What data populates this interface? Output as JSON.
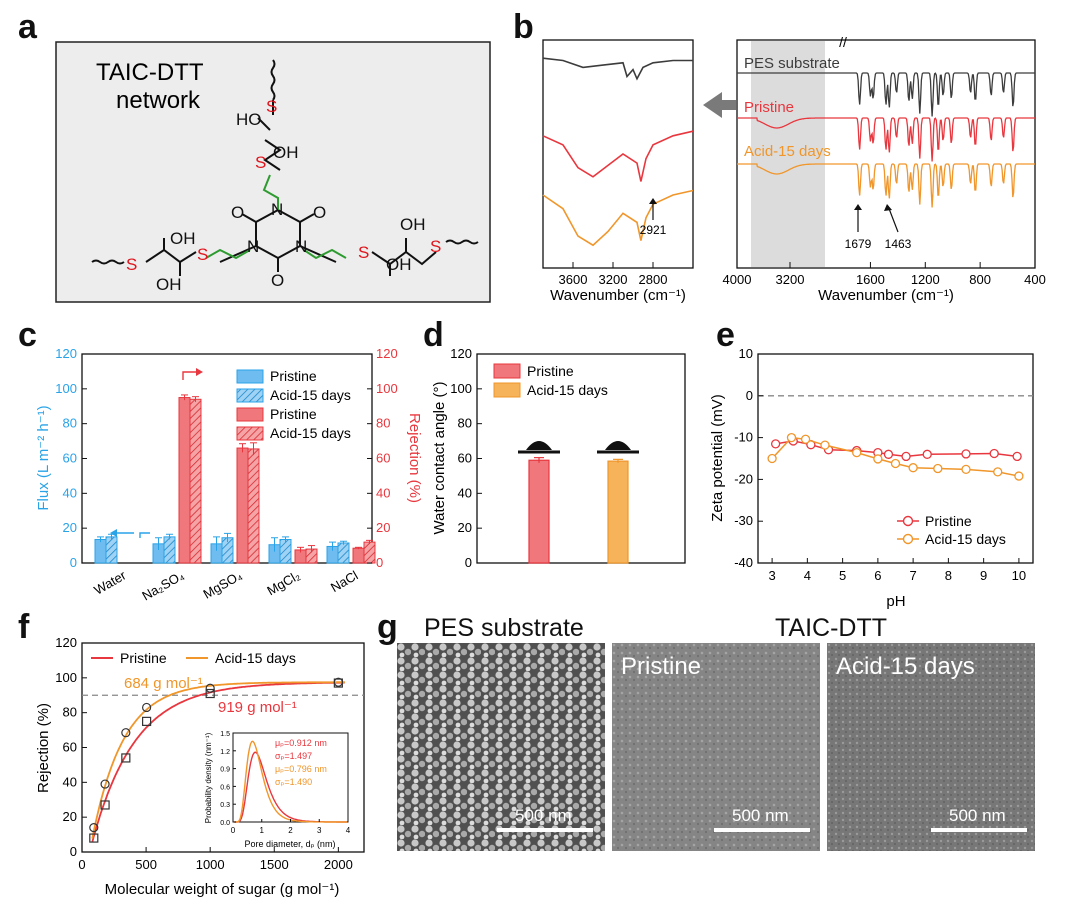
{
  "panel_labels": [
    "a",
    "b",
    "c",
    "d",
    "e",
    "f",
    "g"
  ],
  "colors": {
    "pristine": "#e8373e",
    "acid": "#f0962a",
    "pes": "#3c3c3c",
    "flux_blue": "#29a3e8",
    "rejection_red": "#e8373e",
    "green_chain": "#2e9b30",
    "sulfur": "#e0141c"
  },
  "panel_a": {
    "title_line1": "TAIC-DTT",
    "title_line2": "network",
    "atoms": {
      "S": "S",
      "OH": "OH",
      "HO": "HO",
      "N": "N",
      "O": "O"
    }
  },
  "chart_data": [
    {
      "id": "b-left",
      "type": "line",
      "xlabel": "Wavenumber (cm⁻¹)",
      "xlim": [
        3900,
        2400
      ],
      "x_ticks": [
        "3600",
        "3200",
        "2800"
      ],
      "annotation": "2921",
      "series": [
        {
          "name": "PES substrate",
          "x": [
            3900,
            3700,
            3500,
            3300,
            3100,
            3060,
            3000,
            2960,
            2900,
            2800,
            2600,
            2400
          ],
          "y": [
            0.92,
            0.91,
            0.88,
            0.89,
            0.9,
            0.84,
            0.87,
            0.83,
            0.88,
            0.9,
            0.91,
            0.91
          ]
        },
        {
          "name": "Pristine",
          "x": [
            3900,
            3700,
            3550,
            3400,
            3250,
            3100,
            2960,
            2921,
            2870,
            2800,
            2600,
            2400
          ],
          "y": [
            0.58,
            0.54,
            0.44,
            0.4,
            0.45,
            0.5,
            0.46,
            0.38,
            0.48,
            0.54,
            0.58,
            0.6
          ]
        },
        {
          "name": "Acid-15 days",
          "x": [
            3900,
            3700,
            3550,
            3400,
            3250,
            3100,
            2960,
            2921,
            2870,
            2800,
            2600,
            2400
          ],
          "y": [
            0.32,
            0.26,
            0.14,
            0.1,
            0.16,
            0.24,
            0.2,
            0.12,
            0.22,
            0.28,
            0.32,
            0.34
          ]
        }
      ]
    },
    {
      "id": "b-right",
      "type": "line",
      "xlabel": "Wavenumber (cm⁻¹)",
      "xlim": [
        4000,
        400
      ],
      "x_ticks": [
        "4000",
        "3200",
        "1600",
        "1200",
        "800",
        "400"
      ],
      "annotations": [
        "1679",
        "1463"
      ],
      "series": [
        {
          "name": "PES substrate"
        },
        {
          "name": "Pristine"
        },
        {
          "name": "Acid-15 days"
        }
      ]
    },
    {
      "id": "c",
      "type": "bar",
      "categories": [
        "Water",
        "Na₂SO₄",
        "MgSO₄",
        "MgCl₂",
        "NaCl"
      ],
      "ylabel_left": "Flux (L m⁻² h⁻¹)",
      "ylabel_right": "Rejection (%)",
      "ylim_left": [
        0,
        120
      ],
      "ylim_right": [
        0,
        120
      ],
      "left_ticks": [
        "0",
        "20",
        "40",
        "60",
        "80",
        "100",
        "120"
      ],
      "right_ticks": [
        "0",
        "20",
        "40",
        "60",
        "80",
        "100",
        "120"
      ],
      "legend": [
        "Pristine",
        "Acid-15 days",
        "Pristine",
        "Acid-15 days"
      ],
      "series": [
        {
          "name": "Pristine",
          "axis": "flux",
          "values": [
            13.5,
            11,
            11,
            10.5,
            9.5
          ],
          "errors": [
            1.5,
            3.5,
            4,
            4,
            2.5
          ]
        },
        {
          "name": "Acid-15 days",
          "axis": "flux",
          "values": [
            15,
            15,
            14.5,
            13.5,
            11.5
          ],
          "errors": [
            1.5,
            1.5,
            2.5,
            1.5,
            1
          ]
        },
        {
          "name": "Pristine",
          "axis": "rejection",
          "values": [
            null,
            95,
            66,
            7.5,
            8.5
          ],
          "errors": [
            0,
            1.5,
            2.5,
            1.5,
            0.5
          ]
        },
        {
          "name": "Acid-15 days",
          "axis": "rejection",
          "values": [
            null,
            94,
            65.5,
            8,
            12
          ],
          "errors": [
            0,
            1.5,
            3.5,
            2,
            1
          ]
        }
      ]
    },
    {
      "id": "d",
      "type": "bar",
      "ylabel": "Water contact angle (°)",
      "ylim": [
        0,
        120
      ],
      "y_ticks": [
        "0",
        "20",
        "40",
        "60",
        "80",
        "100",
        "120"
      ],
      "series": [
        {
          "name": "Pristine",
          "values": [
            59
          ],
          "errors": [
            1.5
          ]
        },
        {
          "name": "Acid-15 days",
          "values": [
            58.5
          ],
          "errors": [
            1
          ]
        }
      ]
    },
    {
      "id": "e",
      "type": "line",
      "xlabel": "pH",
      "ylabel": "Zeta potential (mV)",
      "xlim": [
        2.6,
        10.4
      ],
      "ylim": [
        -40,
        10
      ],
      "x_ticks": [
        "3",
        "4",
        "5",
        "6",
        "7",
        "8",
        "9",
        "10"
      ],
      "y_ticks": [
        "-40",
        "-30",
        "-20",
        "-10",
        "0",
        "10"
      ],
      "series": [
        {
          "name": "Pristine",
          "x": [
            3.1,
            3.6,
            4.1,
            4.6,
            5.4,
            6.0,
            6.3,
            6.8,
            7.4,
            8.5,
            9.3,
            9.95
          ],
          "y": [
            -11.5,
            -10.8,
            -11.7,
            -12.9,
            -13.1,
            -13.6,
            -14,
            -14.5,
            -14,
            -13.9,
            -13.8,
            -14.5
          ]
        },
        {
          "name": "Acid-15 days",
          "x": [
            3.0,
            3.55,
            3.95,
            4.5,
            5.4,
            6.0,
            6.5,
            7.0,
            7.7,
            8.5,
            9.4,
            10.0
          ],
          "y": [
            -15,
            -10,
            -10.4,
            -11.8,
            -13.6,
            -15.1,
            -16.2,
            -17.2,
            -17.4,
            -17.6,
            -18.2,
            -19.2
          ]
        }
      ]
    },
    {
      "id": "f",
      "type": "scatter",
      "xlabel": "Molecular weight of sugar (g mol⁻¹)",
      "ylabel": "Rejection (%)",
      "xlim": [
        0,
        2200
      ],
      "ylim": [
        0,
        120
      ],
      "x_ticks": [
        "0",
        "500",
        "1000",
        "1500",
        "2000"
      ],
      "y_ticks": [
        "0",
        "20",
        "40",
        "60",
        "80",
        "100",
        "120"
      ],
      "cutoff_line": 90,
      "annotations": [
        "684 g mol⁻¹",
        "919 g mol⁻¹"
      ],
      "series": [
        {
          "name": "Pristine",
          "x": [
            92,
            180,
            342,
            504,
            1000,
            2000
          ],
          "y": [
            8,
            27,
            54,
            75,
            91,
            97
          ]
        },
        {
          "name": "Acid-15 days",
          "x": [
            92,
            180,
            342,
            504,
            1000,
            2000
          ],
          "y": [
            14,
            39,
            68.5,
            83,
            94,
            97.5
          ]
        }
      ],
      "inset": {
        "type": "line",
        "xlabel": "Pore diameter, dₚ (nm)",
        "ylabel": "Probability density (nm⁻¹)",
        "xlim": [
          0,
          4
        ],
        "ylim": [
          0,
          1.5
        ],
        "x_ticks": [
          "0",
          "1",
          "2",
          "3",
          "4"
        ],
        "y_ticks": [
          "0.0",
          "0.3",
          "0.6",
          "0.9",
          "1.2",
          "1.5"
        ],
        "params": [
          "μₚ=0.912 nm",
          "σₚ=1.497",
          "μₚ=0.796 nm",
          "σₚ=1.490"
        ],
        "series": [
          {
            "name": "Pristine",
            "mu": 0.912,
            "sigma": 1.497
          },
          {
            "name": "Acid-15 days",
            "mu": 0.796,
            "sigma": 1.49
          }
        ]
      }
    }
  ],
  "panel_g": {
    "title_left": "PES substrate",
    "title_right": "TAIC-DTT",
    "labels": [
      "Pristine",
      "Acid-15 days"
    ],
    "scale": "500 nm"
  }
}
